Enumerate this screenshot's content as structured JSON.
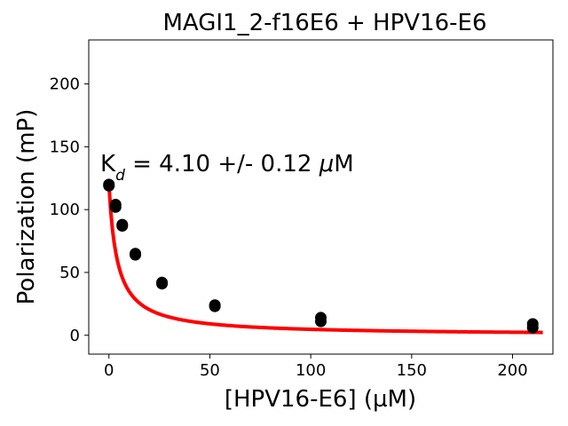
{
  "chart_data": {
    "type": "scatter",
    "title": "MAGI1_2-f16E6 + HPV16-E6",
    "xlabel": "[HPV16-E6] (µM)",
    "ylabel": "Polarization (mP)",
    "xlim": [
      -10,
      220
    ],
    "ylim": [
      -15,
      235
    ],
    "xticks": [
      0,
      50,
      100,
      150,
      200
    ],
    "yticks": [
      0,
      50,
      100,
      150,
      200
    ],
    "grid": false,
    "annotation": {
      "prefix": "K",
      "subscript": "d",
      "text": " = 4.10 +/- 0.12 ",
      "unit_mu": "μ",
      "unit_rest": "M"
    },
    "series": [
      {
        "kind": "points",
        "color": "#000000",
        "x": [
          0,
          0,
          3.3,
          3.3,
          6.6,
          6.6,
          13.1,
          13.1,
          26.3,
          26.3,
          52.5,
          52.5,
          105,
          105,
          210,
          210
        ],
        "y": [
          120,
          119,
          104,
          102,
          88,
          87,
          65,
          64,
          42,
          41,
          24,
          23,
          14,
          11,
          9,
          6
        ]
      },
      {
        "kind": "fit",
        "color": "#ff0000",
        "x_range": [
          0,
          215
        ],
        "fit_params": {
          "Kd": 4.1,
          "top": 120,
          "bottom": 0
        }
      }
    ]
  }
}
